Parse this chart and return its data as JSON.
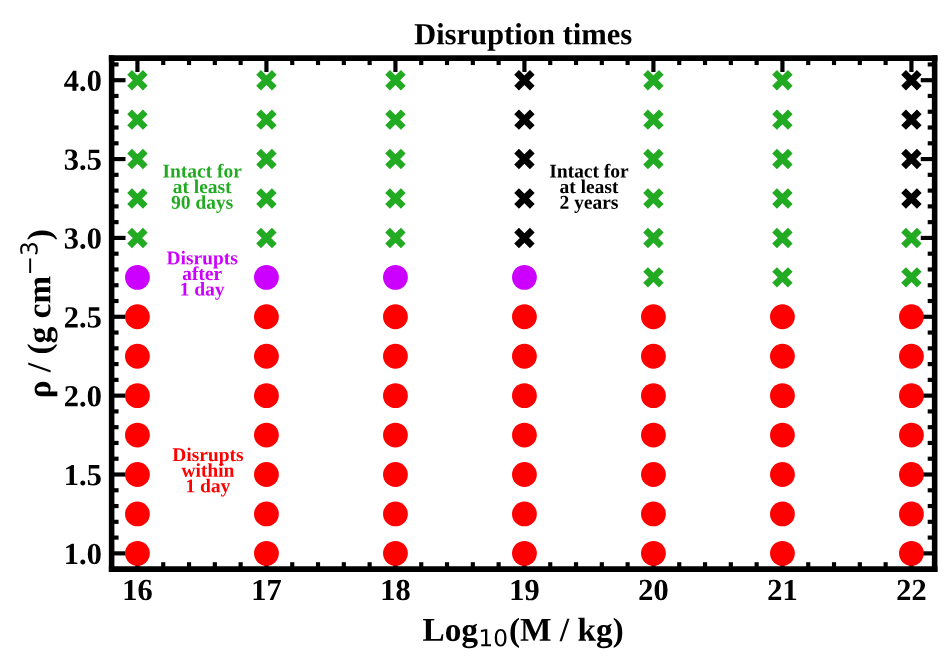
{
  "chart_data": {
    "type": "scatter",
    "title": "Disruption times",
    "xlabel": "Log$_{10}$(M / kg)",
    "ylabel": "ρ / (g cm$^{−3}$)",
    "xlim": [
      15.8,
      22.18
    ],
    "ylim": [
      0.9,
      4.14
    ],
    "xticks": [
      16,
      17,
      18,
      19,
      20,
      21,
      22
    ],
    "yticks": [
      {
        "value": 1,
        "label": "1.0"
      },
      1.5,
      {
        "value": 2,
        "label": "2.0"
      },
      2.5,
      {
        "value": 3,
        "label": "3.0"
      },
      3.5,
      {
        "value": 4,
        "label": "4.0"
      }
    ],
    "grid": false,
    "legend": false,
    "series": [
      {
        "color": "#ff0000",
        "marker": "circle",
        "x": [
          16,
          16,
          16,
          16,
          16,
          16,
          16,
          17,
          17,
          17,
          17,
          17,
          17,
          17,
          18,
          18,
          18,
          18,
          18,
          18,
          18,
          19,
          19,
          19,
          19,
          19,
          19,
          19,
          20,
          20,
          20,
          20,
          20,
          20,
          20,
          21,
          21,
          21,
          21,
          21,
          21,
          21,
          22,
          22,
          22,
          22,
          22,
          22,
          22
        ],
        "values": [
          1.0,
          1.25,
          1.5,
          1.75,
          2.0,
          2.25,
          2.5,
          1.0,
          1.25,
          1.5,
          1.75,
          2.0,
          2.25,
          2.5,
          1.0,
          1.25,
          1.5,
          1.75,
          2.0,
          2.25,
          2.5,
          1.0,
          1.25,
          1.5,
          1.75,
          2.0,
          2.25,
          2.5,
          1.0,
          1.25,
          1.5,
          1.75,
          2.0,
          2.25,
          2.5,
          1.0,
          1.25,
          1.5,
          1.75,
          2.0,
          2.25,
          2.5,
          1.0,
          1.25,
          1.5,
          1.75,
          2.0,
          2.25,
          2.5
        ]
      },
      {
        "color": "#cc00ff",
        "marker": "circle",
        "x": [
          16,
          17,
          18,
          19
        ],
        "values": [
          2.75,
          2.75,
          2.75,
          2.75
        ]
      },
      {
        "color": "#22aa22",
        "marker": "cross",
        "x": [
          16,
          16,
          16,
          16,
          16,
          17,
          17,
          17,
          17,
          17,
          18,
          18,
          18,
          18,
          18,
          20,
          20,
          20,
          20,
          20,
          20,
          21,
          21,
          21,
          21,
          21,
          21,
          22,
          22
        ],
        "values": [
          3.0,
          3.25,
          3.5,
          3.75,
          4.0,
          3.0,
          3.25,
          3.5,
          3.75,
          4.0,
          3.0,
          3.25,
          3.5,
          3.75,
          4.0,
          2.75,
          3.0,
          3.25,
          3.5,
          3.75,
          4.0,
          2.75,
          3.0,
          3.25,
          3.5,
          3.75,
          4.0,
          2.75,
          3.0
        ]
      },
      {
        "color": "#000000",
        "marker": "cross",
        "x": [
          19,
          19,
          19,
          19,
          19,
          22,
          22,
          22,
          22
        ],
        "values": [
          3.0,
          3.25,
          3.5,
          3.75,
          4.0,
          3.25,
          3.5,
          3.75,
          4.0
        ]
      }
    ],
    "annotations": [
      "Disrupts\nwithin\n1 day",
      "Disrupts\nafter\n1 day",
      "Intact for\nat least\n90 days",
      "Intact for\nat least\n2 years"
    ]
  }
}
